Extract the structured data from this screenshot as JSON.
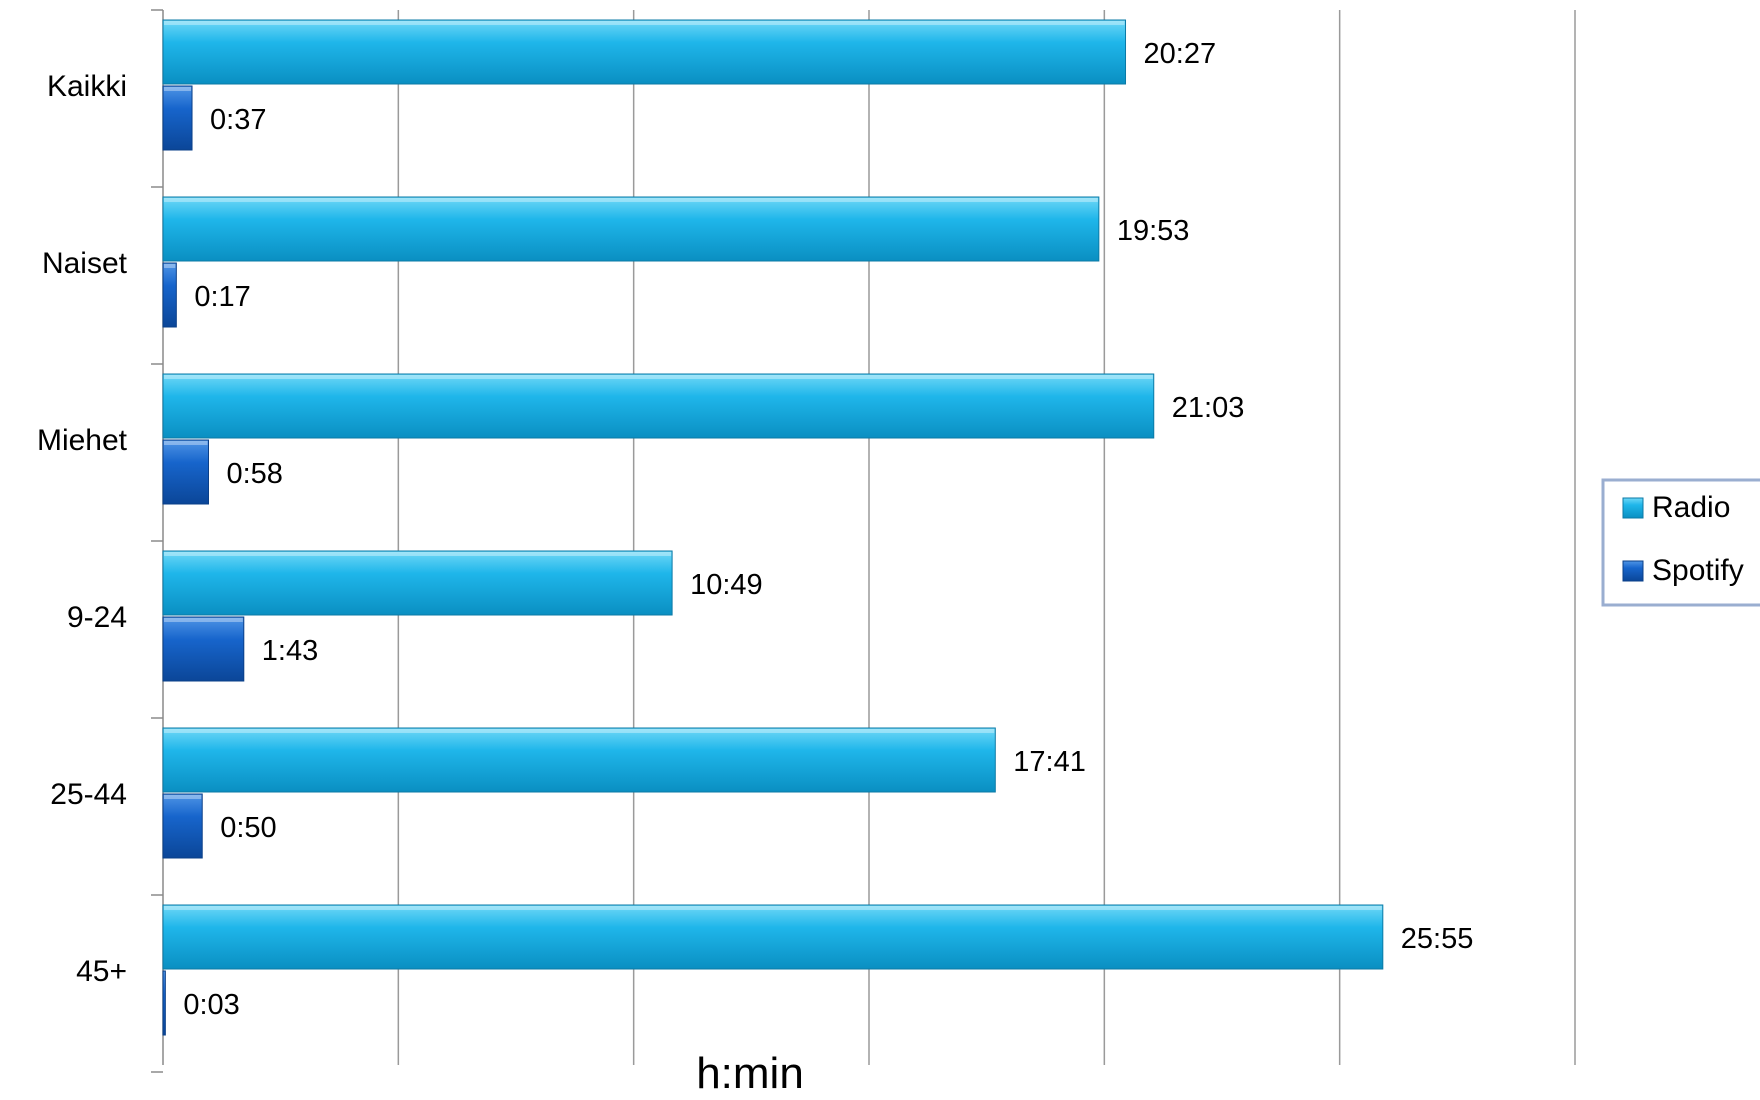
{
  "chart_data": {
    "type": "bar",
    "orientation": "horizontal",
    "title": "",
    "xlabel": "h:min",
    "ylabel": "",
    "xlim": [
      0,
      1800
    ],
    "grid": true,
    "legend_position": "right",
    "categories": [
      "Kaikki",
      "Naiset",
      "Miehet",
      "9-24",
      "25-44",
      "45+"
    ],
    "series": [
      {
        "name": "Radio",
        "color": "#1eb3e6",
        "values": [
          1227,
          1193,
          1263,
          649,
          1061,
          1555
        ],
        "labels": [
          "20:27",
          "19:53",
          "21:03",
          "10:49",
          "17:41",
          "25:55"
        ]
      },
      {
        "name": "Spotify",
        "color": "#1565c9",
        "values": [
          37,
          17,
          58,
          103,
          50,
          3
        ],
        "labels": [
          "0:37",
          "0:17",
          "0:58",
          "1:43",
          "0:50",
          "0:03"
        ]
      }
    ]
  }
}
